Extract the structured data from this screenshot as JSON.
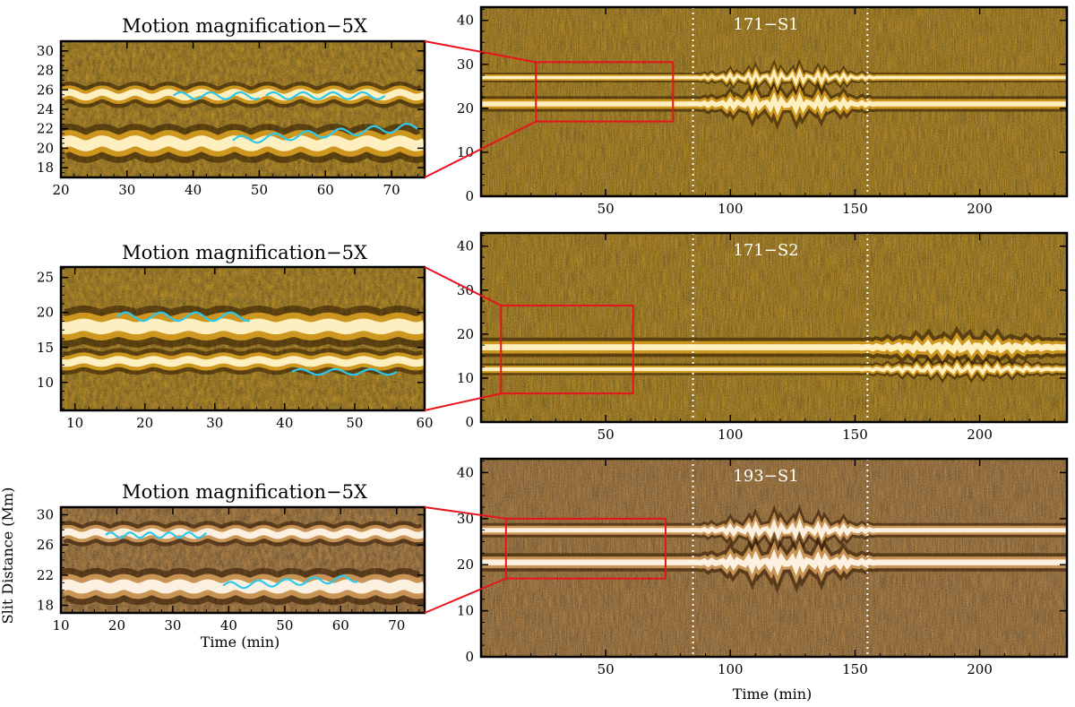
{
  "figure": {
    "time_axis_label": "Time (min)",
    "y_axis_label": "Slit Distance (Mm)"
  },
  "chart_data": [
    {
      "id": "zoom-1",
      "type": "heatmap",
      "title": "Motion magnification−5X",
      "colormap": "gold",
      "xlim": [
        20,
        75
      ],
      "ylim": [
        17,
        31
      ],
      "xticks": [
        "20",
        "30",
        "40",
        "50",
        "60",
        "70"
      ],
      "yticks": [
        "18",
        "20",
        "22",
        "24",
        "26",
        "28",
        "30"
      ],
      "xlabel": "",
      "ylabel": "",
      "threads": [
        {
          "y": 20.5,
          "width": 1.6
        },
        {
          "y": 25.5,
          "width": 1.0
        }
      ],
      "oscillation_guides": [
        {
          "x": [
            37,
            50
          ],
          "y": 25.4,
          "amplitude": 0.35,
          "period": 4.5
        },
        {
          "x": [
            51,
            69
          ],
          "y": 25.4,
          "amplitude": 0.35,
          "period": 4.5
        },
        {
          "x": [
            46,
            74
          ],
          "y": 20.8,
          "amplitude": 0.4,
          "period": 5.0,
          "slope": 0.05
        }
      ]
    },
    {
      "id": "zoom-2",
      "type": "heatmap",
      "title": "Motion magnification−5X",
      "colormap": "gold",
      "xlim": [
        8,
        60
      ],
      "ylim": [
        6,
        26.5
      ],
      "xticks": [
        "10",
        "20",
        "30",
        "40",
        "50",
        "60"
      ],
      "yticks": [
        "10",
        "15",
        "20",
        "25"
      ],
      "xlabel": "",
      "ylabel": "",
      "threads": [
        {
          "y": 18,
          "width": 2.5
        },
        {
          "y": 13,
          "width": 1.5
        }
      ],
      "oscillation_guides": [
        {
          "x": [
            16,
            35
          ],
          "y": 19.4,
          "amplitude": 0.6,
          "period": 5.0
        },
        {
          "x": [
            41,
            56
          ],
          "y": 11.5,
          "amplitude": 0.4,
          "period": 5.0
        }
      ]
    },
    {
      "id": "zoom-3",
      "type": "heatmap",
      "title": "Motion magnification−5X",
      "colormap": "brown",
      "xlim": [
        10,
        75
      ],
      "ylim": [
        17,
        31
      ],
      "xticks": [
        "10",
        "20",
        "30",
        "40",
        "50",
        "60",
        "70"
      ],
      "yticks": [
        "18",
        "22",
        "26",
        "30"
      ],
      "xlabel": "Time (min)",
      "ylabel": "Slit Distance (Mm)",
      "threads": [
        {
          "y": 27.5,
          "width": 1.3
        },
        {
          "y": 20.5,
          "width": 2.0
        }
      ],
      "oscillation_guides": [
        {
          "x": [
            18,
            36
          ],
          "y": 27.3,
          "amplitude": 0.35,
          "period": 3.5
        },
        {
          "x": [
            39,
            63
          ],
          "y": 20.6,
          "amplitude": 0.45,
          "period": 5.0,
          "slope": 0.04
        }
      ]
    },
    {
      "id": "main-1",
      "type": "heatmap",
      "title": "171−S1",
      "colormap": "gold",
      "xlim": [
        0,
        235
      ],
      "ylim": [
        0,
        43
      ],
      "xticks": [
        "50",
        "100",
        "150",
        "200"
      ],
      "yticks": [
        "0",
        "10",
        "20",
        "30",
        "40"
      ],
      "xlabel": "",
      "ylabel": "",
      "vlines": [
        85,
        155
      ],
      "zoom_box": {
        "x": [
          22,
          77
        ],
        "y": [
          17,
          30.5
        ]
      },
      "threads": [
        {
          "y": 21,
          "width": 1.6
        },
        {
          "y": 27,
          "width": 1.0
        }
      ],
      "oscillation": {
        "start": 85,
        "end": 160,
        "amplitude": 1.2,
        "period": 3.5
      }
    },
    {
      "id": "main-2",
      "type": "heatmap",
      "title": "171−S2",
      "colormap": "gold",
      "xlim": [
        0,
        235
      ],
      "ylim": [
        0,
        43
      ],
      "xticks": [
        "50",
        "100",
        "150",
        "200"
      ],
      "yticks": [
        "0",
        "10",
        "20",
        "30",
        "40"
      ],
      "xlabel": "",
      "ylabel": "",
      "vlines": [
        85,
        155
      ],
      "zoom_box": {
        "x": [
          8,
          61
        ],
        "y": [
          6.5,
          26.5
        ]
      },
      "threads": [
        {
          "y": 17,
          "width": 2.0
        },
        {
          "y": 12,
          "width": 1.2
        }
      ],
      "oscillation": {
        "start": 150,
        "end": 235,
        "amplitude": 0.8,
        "period": 4.0
      }
    },
    {
      "id": "main-3",
      "type": "heatmap",
      "title": "193−S1",
      "colormap": "brown",
      "xlim": [
        0,
        235
      ],
      "ylim": [
        0,
        43
      ],
      "xticks": [
        "50",
        "100",
        "150",
        "200"
      ],
      "yticks": [
        "0",
        "10",
        "20",
        "30",
        "40"
      ],
      "xlabel": "Time (min)",
      "ylabel": "",
      "vlines": [
        85,
        155
      ],
      "zoom_box": {
        "x": [
          10,
          74
        ],
        "y": [
          17,
          30
        ]
      },
      "threads": [
        {
          "y": 27.5,
          "width": 1.4
        },
        {
          "y": 20.5,
          "width": 1.8
        }
      ],
      "oscillation": {
        "start": 85,
        "end": 160,
        "amplitude": 1.2,
        "period": 3.5
      }
    }
  ]
}
